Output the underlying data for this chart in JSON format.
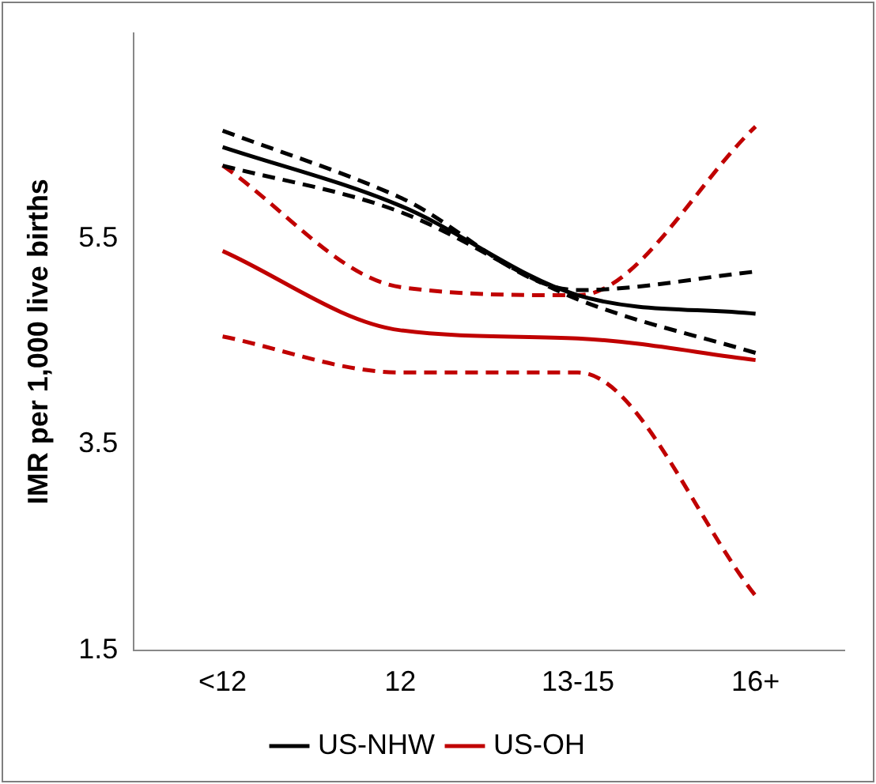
{
  "chart_data": {
    "type": "line",
    "ylabel": "IMR per 1,000 live births",
    "categories": [
      "<12",
      "12",
      "13-15",
      "16+"
    ],
    "ylim": [
      1.5,
      7.5
    ],
    "yticks": [
      1.5,
      3.5,
      5.5
    ],
    "grid": false,
    "legend": "bottom",
    "marker": "none",
    "series": [
      {
        "name": "US-NHW",
        "color": "#000000",
        "line_style": "solid",
        "values": [
          6.39,
          5.82,
          4.95,
          4.77
        ]
      },
      {
        "color": "#000000",
        "line_style": "dashed",
        "values": [
          6.55,
          5.9,
          5.0,
          5.18
        ]
      },
      {
        "color": "#000000",
        "line_style": "dashed",
        "values": [
          6.21,
          5.76,
          4.91,
          4.39
        ]
      },
      {
        "name": "US-OH",
        "color": "#c00000",
        "line_style": "solid",
        "values": [
          5.38,
          4.61,
          4.53,
          4.32
        ]
      },
      {
        "color": "#c00000",
        "line_style": "dashed",
        "values": [
          6.21,
          5.03,
          4.95,
          6.59
        ]
      },
      {
        "color": "#c00000",
        "line_style": "dashed",
        "values": [
          4.55,
          4.2,
          4.2,
          2.03
        ]
      }
    ]
  }
}
